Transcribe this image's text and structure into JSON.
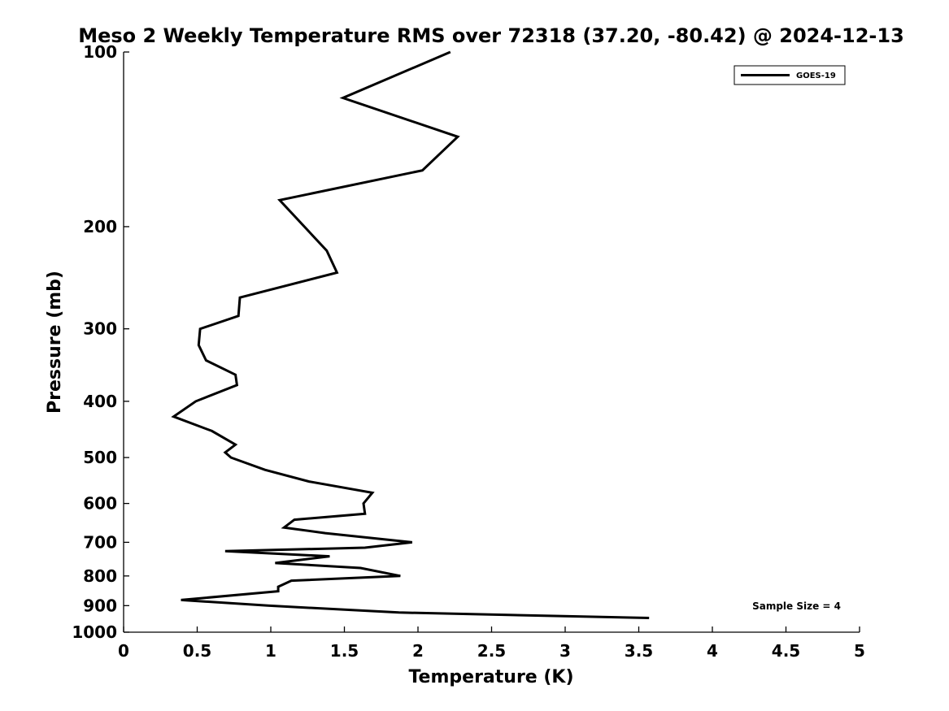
{
  "chart_data": {
    "type": "line",
    "title": "Meso 2 Weekly Temperature RMS over 72318 (37.20, -80.42) @ 2024-12-13",
    "xlabel": "Temperature (K)",
    "ylabel": "Pressure (mb)",
    "xlim": [
      0,
      5
    ],
    "ylim": [
      100,
      1000
    ],
    "yscale": "log",
    "y_inverted": true,
    "x_ticks": [
      0,
      0.5,
      1,
      1.5,
      2,
      2.5,
      3,
      3.5,
      4,
      4.5,
      5
    ],
    "x_tick_labels": [
      "0",
      "0.5",
      "1",
      "1.5",
      "2",
      "2.5",
      "3",
      "3.5",
      "4",
      "4.5",
      "5"
    ],
    "y_ticks": [
      100,
      200,
      300,
      400,
      500,
      600,
      700,
      800,
      900,
      1000
    ],
    "y_tick_labels": [
      "100",
      "200",
      "300",
      "400",
      "500",
      "600",
      "700",
      "800",
      "900",
      "1000"
    ],
    "grid": false,
    "legend_position": "top-right",
    "annotation": "Sample Size = 4",
    "series": [
      {
        "name": "GOES-19",
        "color": "#000000",
        "x": [
          2.22,
          1.49,
          2.27,
          2.03,
          1.06,
          1.38,
          1.45,
          0.79,
          0.78,
          0.52,
          0.51,
          0.56,
          0.76,
          0.77,
          0.49,
          0.34,
          0.6,
          0.76,
          0.69,
          0.73,
          0.96,
          1.26,
          1.69,
          1.63,
          1.64,
          1.16,
          1.09,
          1.37,
          1.96,
          1.64,
          0.69,
          1.4,
          1.03,
          1.61,
          1.88,
          1.14,
          1.05,
          1.05,
          0.39,
          0.98,
          1.87,
          3.57
        ],
        "y": [
          100,
          120,
          140,
          160,
          180,
          220,
          240,
          265,
          285,
          300,
          320,
          340,
          360,
          375,
          400,
          425,
          450,
          475,
          490,
          500,
          525,
          550,
          575,
          600,
          625,
          640,
          660,
          675,
          700,
          715,
          725,
          740,
          760,
          775,
          800,
          815,
          835,
          850,
          880,
          900,
          925,
          945
        ]
      }
    ]
  }
}
